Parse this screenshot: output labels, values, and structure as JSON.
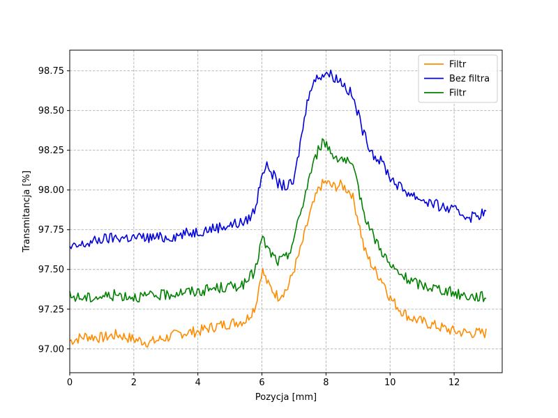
{
  "chart_data": {
    "type": "line",
    "title": "",
    "xlabel": "Pozycja [mm]",
    "ylabel": "Transmitancja [%]",
    "xlim": [
      0,
      13.5
    ],
    "ylim": [
      96.85,
      98.88
    ],
    "xticks": [
      0,
      2,
      4,
      6,
      8,
      10,
      12
    ],
    "xtick_labels": [
      "0",
      "2",
      "4",
      "6",
      "8",
      "10",
      "12"
    ],
    "yticks": [
      97.0,
      97.25,
      97.5,
      97.75,
      98.0,
      98.25,
      98.5,
      98.75
    ],
    "ytick_labels": [
      "97.00",
      "97.25",
      "97.50",
      "97.75",
      "98.00",
      "98.25",
      "98.50",
      "98.75"
    ],
    "grid": true,
    "legend_position": "top-right",
    "series": [
      {
        "name": "Filtr",
        "color": "#ff8c00",
        "x": [
          0,
          0.5,
          1,
          1.5,
          2,
          2.5,
          3,
          3.5,
          4,
          4.5,
          5,
          5.5,
          5.8,
          6,
          6.2,
          6.5,
          6.8,
          7,
          7.2,
          7.5,
          7.8,
          8,
          8.2,
          8.5,
          8.8,
          9,
          9.2,
          9.5,
          9.8,
          10,
          10.3,
          10.6,
          11,
          11.5,
          12,
          12.5,
          13
        ],
        "y": [
          97.05,
          97.08,
          97.07,
          97.09,
          97.06,
          97.04,
          97.07,
          97.1,
          97.11,
          97.14,
          97.16,
          97.18,
          97.27,
          97.5,
          97.4,
          97.33,
          97.38,
          97.5,
          97.62,
          97.85,
          98.02,
          98.05,
          98.02,
          98.03,
          97.98,
          97.82,
          97.62,
          97.5,
          97.42,
          97.32,
          97.25,
          97.2,
          97.17,
          97.14,
          97.11,
          97.1,
          97.1
        ]
      },
      {
        "name": "Bez filtra",
        "color": "#0000dd",
        "x": [
          0,
          0.5,
          1,
          1.5,
          2,
          2.5,
          3,
          3.5,
          4,
          4.5,
          5,
          5.5,
          5.8,
          6,
          6.2,
          6.5,
          6.8,
          7,
          7.2,
          7.5,
          7.8,
          8,
          8.2,
          8.5,
          8.8,
          9,
          9.2,
          9.5,
          9.8,
          10,
          10.3,
          10.6,
          11,
          11.5,
          12,
          12.5,
          13
        ],
        "y": [
          97.63,
          97.66,
          97.69,
          97.7,
          97.7,
          97.7,
          97.7,
          97.72,
          97.74,
          97.76,
          97.78,
          97.8,
          97.88,
          98.12,
          98.15,
          98.04,
          98.02,
          98.05,
          98.3,
          98.65,
          98.72,
          98.74,
          98.72,
          98.68,
          98.6,
          98.48,
          98.34,
          98.22,
          98.16,
          98.08,
          98.02,
          97.98,
          97.94,
          97.9,
          97.87,
          97.83,
          97.86
        ]
      },
      {
        "name": "Filtr",
        "color": "#008000",
        "x": [
          0,
          0.5,
          1,
          1.5,
          2,
          2.5,
          3,
          3.5,
          4,
          4.5,
          5,
          5.5,
          5.8,
          6,
          6.2,
          6.5,
          6.8,
          7,
          7.2,
          7.5,
          7.8,
          8,
          8.2,
          8.5,
          8.8,
          9,
          9.2,
          9.5,
          9.8,
          10,
          10.3,
          10.6,
          11,
          11.5,
          12,
          12.5,
          13
        ],
        "y": [
          97.33,
          97.32,
          97.33,
          97.34,
          97.33,
          97.33,
          97.34,
          97.36,
          97.36,
          97.38,
          97.39,
          97.41,
          97.5,
          97.7,
          97.62,
          97.55,
          97.58,
          97.7,
          97.85,
          98.1,
          98.28,
          98.3,
          98.22,
          98.2,
          98.15,
          98.02,
          97.85,
          97.7,
          97.6,
          97.52,
          97.47,
          97.43,
          97.4,
          97.38,
          97.35,
          97.33,
          97.33
        ]
      }
    ]
  }
}
